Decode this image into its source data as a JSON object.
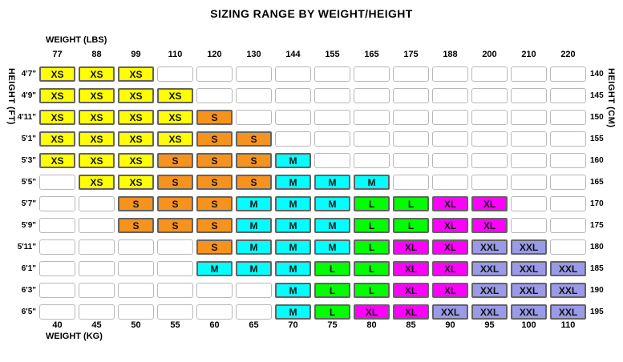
{
  "chart_data": {
    "type": "heatmap",
    "title": "SIZING RANGE BY WEIGHT/HEIGHT",
    "x_axis_top": {
      "label": "WEIGHT (LBS)",
      "ticks": [
        77,
        88,
        99,
        110,
        120,
        130,
        144,
        155,
        165,
        175,
        188,
        200,
        210,
        220
      ]
    },
    "x_axis_bottom": {
      "label": "WEIGHT (KG)",
      "ticks": [
        40,
        45,
        50,
        55,
        60,
        65,
        70,
        75,
        80,
        85,
        90,
        95,
        100,
        110
      ]
    },
    "y_axis_left": {
      "label": "HEIGHT (FT)",
      "ticks": [
        "4'7\"",
        "4'9\"",
        "4'11\"",
        "5'1\"",
        "5'3\"",
        "5'5\"",
        "5'7\"",
        "5'9\"",
        "5'11\"",
        "6'1\"",
        "6'3\"",
        "6'5\""
      ]
    },
    "y_axis_right": {
      "label": "HEIGHT (CM)",
      "ticks": [
        140,
        145,
        150,
        155,
        160,
        165,
        170,
        175,
        180,
        185,
        190,
        195
      ]
    },
    "legend": {
      "XS": "#ffff00",
      "S": "#f6921e",
      "M": "#00ffff",
      "L": "#00ff00",
      "XL": "#ff00ff",
      "XXL": "#9a9ae8"
    },
    "empty_color": "#ffffff",
    "values": [
      [
        "XS",
        "XS",
        "XS",
        "",
        "",
        "",
        "",
        "",
        "",
        "",
        "",
        "",
        "",
        ""
      ],
      [
        "XS",
        "XS",
        "XS",
        "XS",
        "",
        "",
        "",
        "",
        "",
        "",
        "",
        "",
        "",
        ""
      ],
      [
        "XS",
        "XS",
        "XS",
        "XS",
        "S",
        "",
        "",
        "",
        "",
        "",
        "",
        "",
        "",
        ""
      ],
      [
        "XS",
        "XS",
        "XS",
        "XS",
        "S",
        "S",
        "",
        "",
        "",
        "",
        "",
        "",
        "",
        ""
      ],
      [
        "XS",
        "XS",
        "XS",
        "S",
        "S",
        "S",
        "M",
        "",
        "",
        "",
        "",
        "",
        "",
        ""
      ],
      [
        "",
        "XS",
        "XS",
        "S",
        "S",
        "S",
        "M",
        "M",
        "M",
        "",
        "",
        "",
        "",
        ""
      ],
      [
        "",
        "",
        "S",
        "S",
        "S",
        "M",
        "M",
        "M",
        "L",
        "L",
        "XL",
        "XL",
        "",
        ""
      ],
      [
        "",
        "",
        "S",
        "S",
        "S",
        "M",
        "M",
        "M",
        "L",
        "L",
        "XL",
        "XL",
        "",
        ""
      ],
      [
        "",
        "",
        "",
        "",
        "S",
        "M",
        "M",
        "M",
        "L",
        "XL",
        "XL",
        "XXL",
        "XXL",
        ""
      ],
      [
        "",
        "",
        "",
        "",
        "M",
        "M",
        "M",
        "L",
        "L",
        "XL",
        "XL",
        "XXL",
        "XXL",
        "XXL"
      ],
      [
        "",
        "",
        "",
        "",
        "",
        "",
        "M",
        "L",
        "L",
        "XL",
        "XL",
        "XXL",
        "XXL",
        "XXL"
      ],
      [
        "",
        "",
        "",
        "",
        "",
        "",
        "M",
        "L",
        "XL",
        "XL",
        "XXL",
        "XXL",
        "XXL",
        "XXL"
      ]
    ]
  }
}
